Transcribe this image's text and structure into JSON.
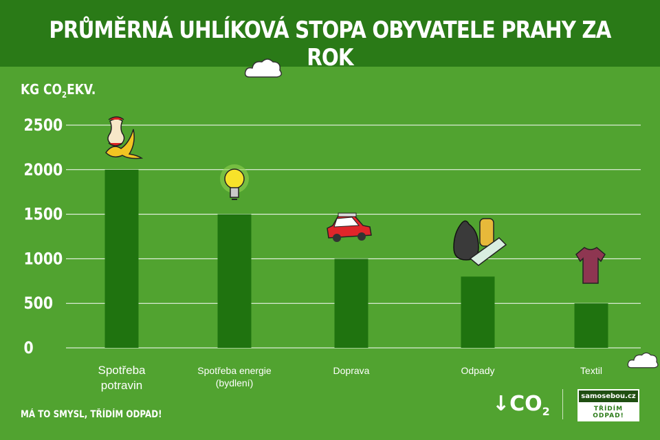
{
  "header": {
    "title": "PRŮMĚRNÁ UHLÍKOVÁ STOPA OBYVATELE PRAHY ZA ROK"
  },
  "colors": {
    "background": "#51a330",
    "header": "#2a7a17",
    "bar": "#1f730f",
    "grid": "#ffffff",
    "text": "#ffffff"
  },
  "chart_data": {
    "type": "bar",
    "ylabel_main": "KG CO",
    "ylabel_sub": "2",
    "ylabel_tail": "EKV.",
    "categories": [
      [
        "Spotřeba",
        "potravin"
      ],
      [
        "Spotřeba energie",
        "(bydlení)"
      ],
      [
        "Doprava"
      ],
      [
        "Odpady"
      ],
      [
        "Textil"
      ]
    ],
    "values": [
      2000,
      1500,
      1000,
      800,
      500
    ],
    "yticks": [
      "2500",
      "2000",
      "1500",
      "1000",
      "500",
      "0"
    ],
    "ylim": [
      0,
      2500
    ],
    "grid": true,
    "icons": [
      "apple-core-banana-icon",
      "light-bulb-icon",
      "car-icon",
      "trash-bag-icon",
      "t-shirt-icon"
    ]
  },
  "footer": {
    "slogan": "MÁ TO SMYSL, TŘÍDÍM ODPAD!",
    "logo_main": "↓CO",
    "logo_sub": "2",
    "brand_name": "samosebou.cz",
    "brand_tag": "TŘÍDÍM ODPAD!"
  }
}
